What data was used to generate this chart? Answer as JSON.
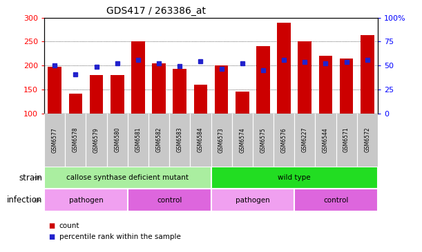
{
  "title": "GDS417 / 263386_at",
  "samples": [
    "GSM6577",
    "GSM6578",
    "GSM6579",
    "GSM6580",
    "GSM6581",
    "GSM6582",
    "GSM6583",
    "GSM6584",
    "GSM6573",
    "GSM6574",
    "GSM6575",
    "GSM6576",
    "GSM6227",
    "GSM6544",
    "GSM6571",
    "GSM6572"
  ],
  "counts": [
    197,
    141,
    180,
    180,
    250,
    205,
    193,
    160,
    200,
    145,
    240,
    290,
    250,
    220,
    215,
    264
  ],
  "percentile_values": [
    200,
    182,
    198,
    204,
    212,
    204,
    199,
    209,
    193,
    204,
    190,
    212,
    207,
    204,
    207,
    212
  ],
  "ylim_left": [
    100,
    300
  ],
  "ylim_right": [
    0,
    100
  ],
  "yticks_left": [
    100,
    150,
    200,
    250,
    300
  ],
  "yticks_right": [
    0,
    25,
    50,
    75,
    100
  ],
  "bar_color": "#cc0000",
  "dot_color": "#2222cc",
  "sample_box_color": "#c8c8c8",
  "strain_groups": [
    {
      "label": "callose synthase deficient mutant",
      "start": 0,
      "end": 8,
      "color": "#aaeea0"
    },
    {
      "label": "wild type",
      "start": 8,
      "end": 16,
      "color": "#22dd22"
    }
  ],
  "infection_groups": [
    {
      "label": "pathogen",
      "start": 0,
      "end": 4,
      "color": "#f0a0f0"
    },
    {
      "label": "control",
      "start": 4,
      "end": 8,
      "color": "#dd66dd"
    },
    {
      "label": "pathogen",
      "start": 8,
      "end": 12,
      "color": "#f0a0f0"
    },
    {
      "label": "control",
      "start": 12,
      "end": 16,
      "color": "#dd66dd"
    }
  ],
  "legend_items": [
    {
      "label": "count",
      "color": "#cc0000"
    },
    {
      "label": "percentile rank within the sample",
      "color": "#2222cc"
    }
  ],
  "fig_width": 6.11,
  "fig_height": 3.66,
  "dpi": 100
}
